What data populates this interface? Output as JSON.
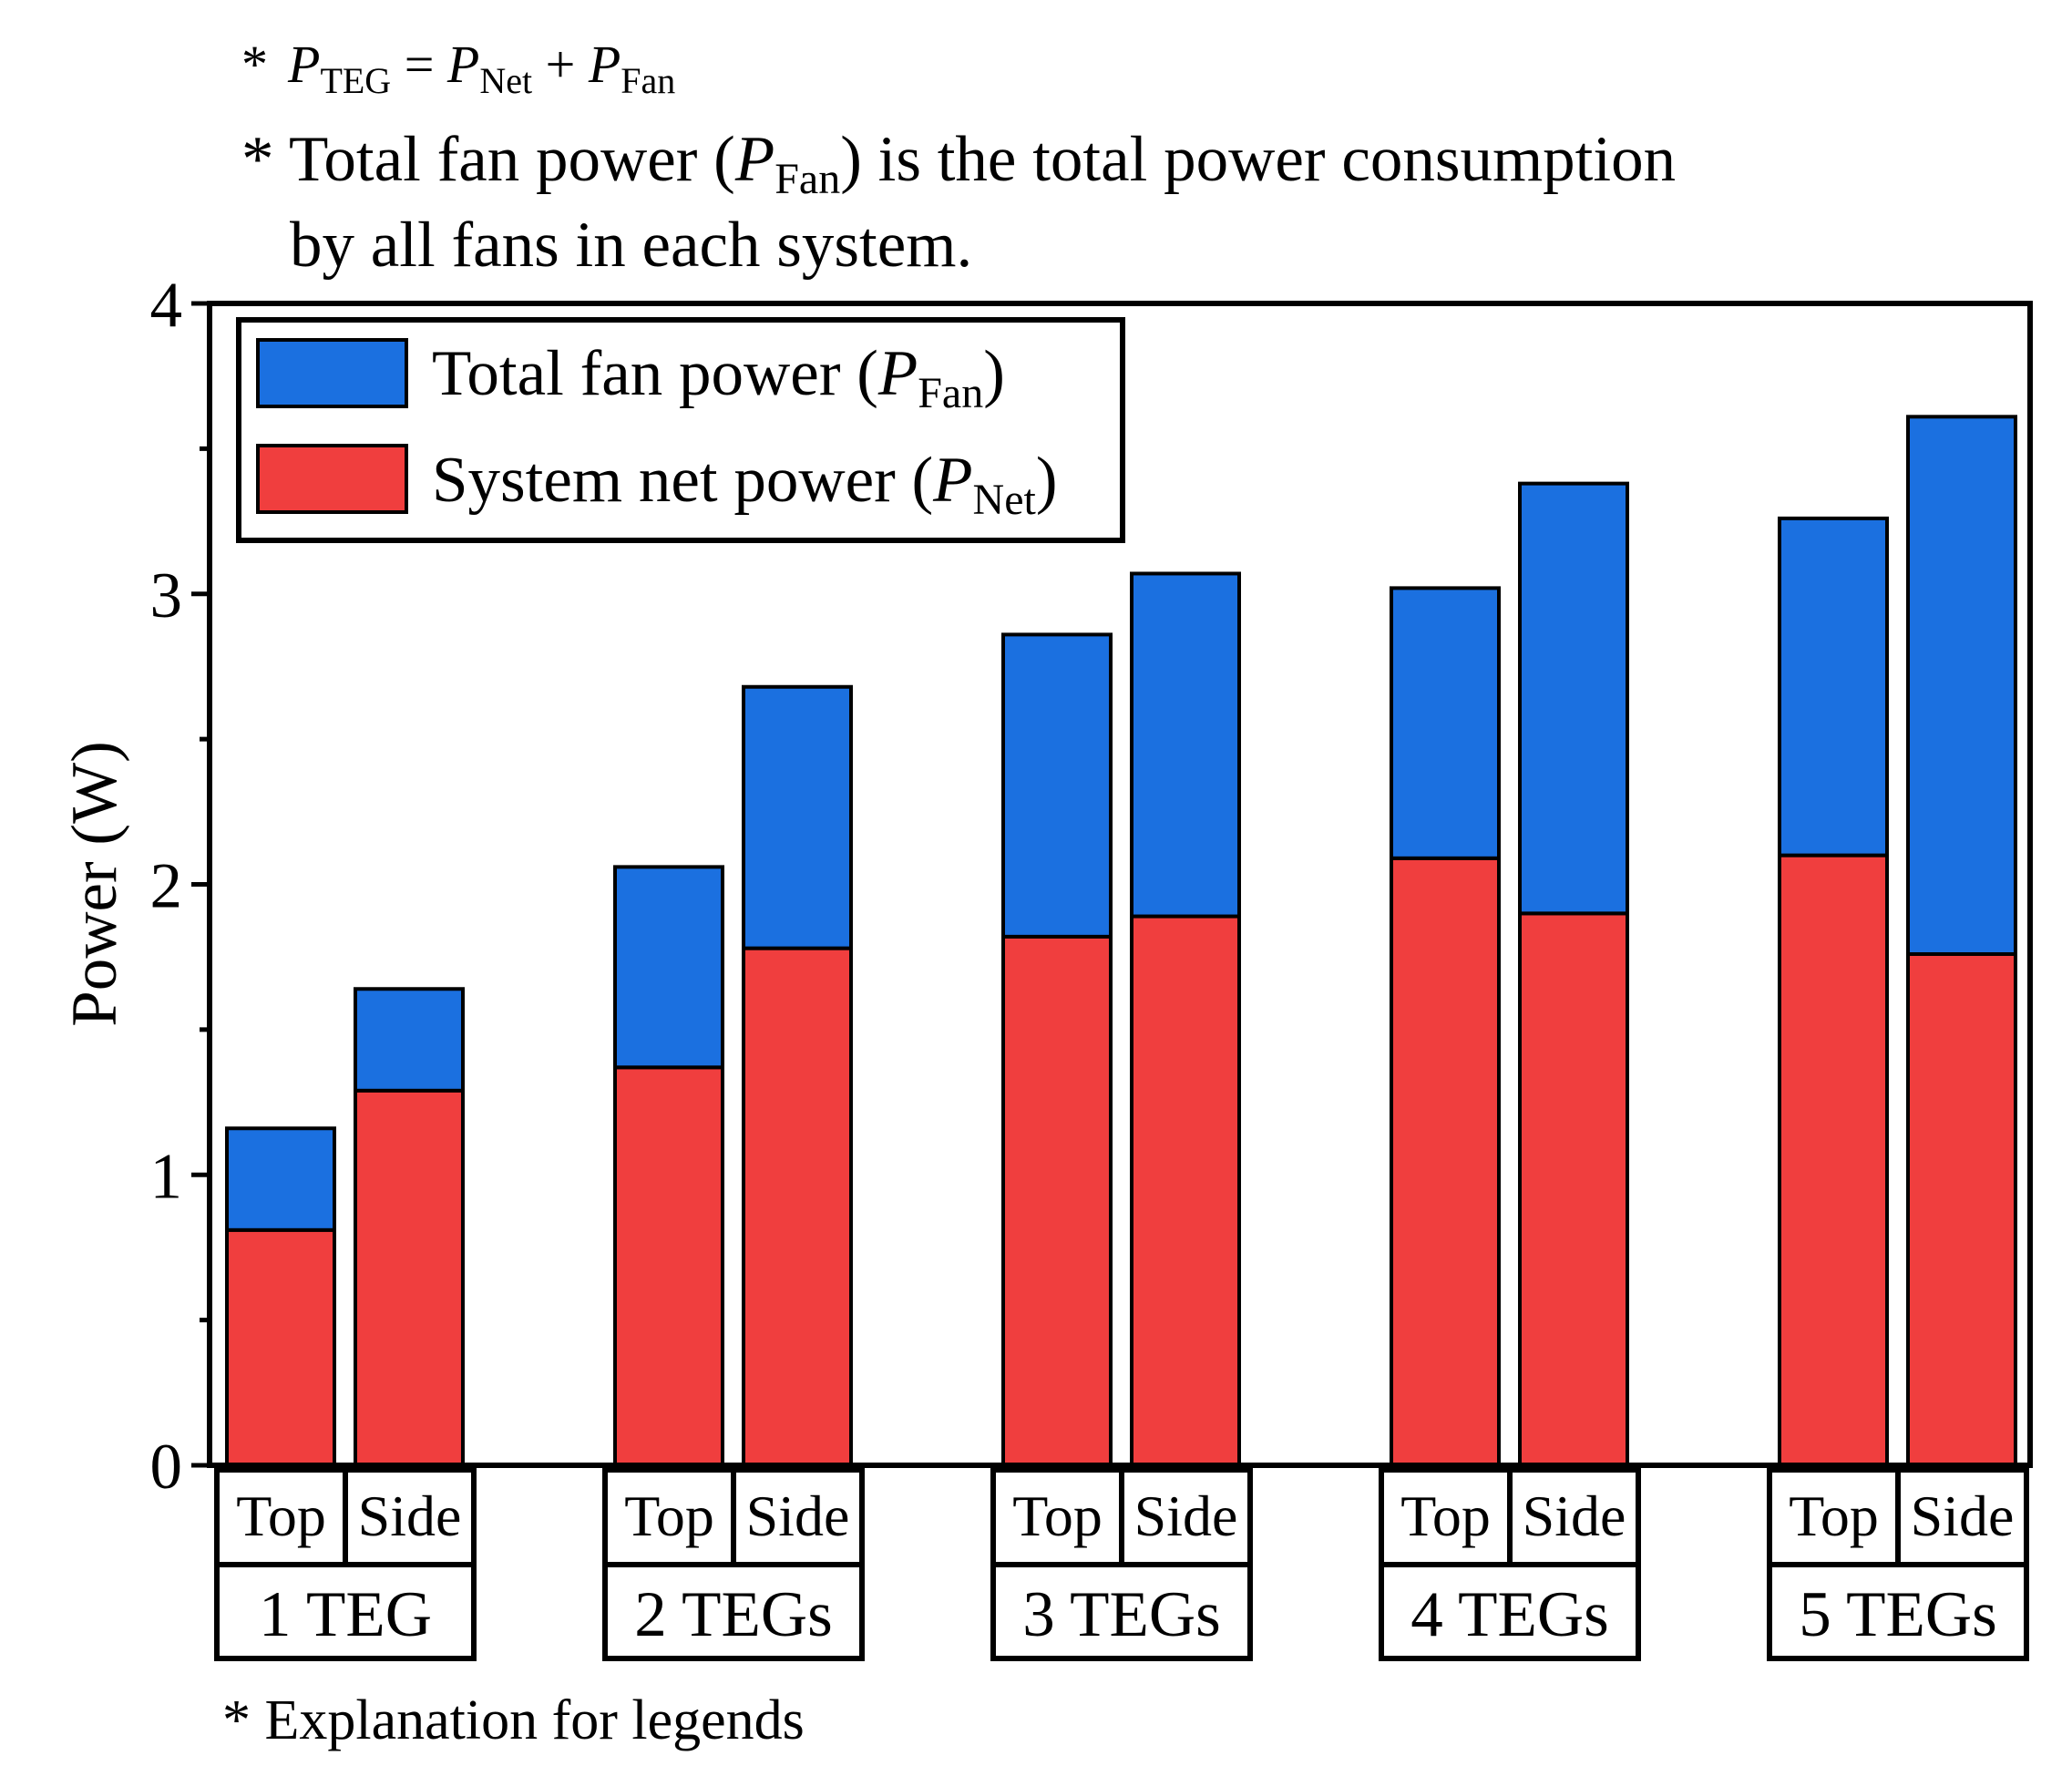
{
  "notes": {
    "line1": {
      "star": "*",
      "p1": "P",
      "s1": "TEG",
      "eq": " = ",
      "p2": "P",
      "s2": "Net",
      "plus": " + ",
      "p3": "P",
      "s3": "Fan"
    },
    "line2": {
      "pre": "* Total fan power (",
      "p": "P",
      "sub": "Fan",
      "post": ") is the total power consumption"
    },
    "line3": "by all fans in each system.",
    "bottom": "* Explanation for legends"
  },
  "colors": {
    "fan": "#1b70e0",
    "net": "#f03e3e",
    "frame": "#000000"
  },
  "chart_data": {
    "type": "bar",
    "stacked": true,
    "ylabel": "Power (W)",
    "ylim": [
      0,
      4
    ],
    "yticks": [
      "0",
      "1",
      "2",
      "3",
      "4"
    ],
    "groups": [
      "1 TEG",
      "2 TEGs",
      "3 TEGs",
      "4 TEGs",
      "5 TEGs"
    ],
    "subcategories": [
      "Top",
      "Side"
    ],
    "categories": [
      "1 TEG Top",
      "1 TEG Side",
      "2 TEGs Top",
      "2 TEGs Side",
      "3 TEGs Top",
      "3 TEGs Side",
      "4 TEGs Top",
      "4 TEGs Side",
      "5 TEGs Top",
      "5 TEGs Side"
    ],
    "series": [
      {
        "name": "System net power (P_Net)",
        "values": [
          0.81,
          1.29,
          1.37,
          1.78,
          1.82,
          1.89,
          2.09,
          1.9,
          2.1,
          1.76
        ]
      },
      {
        "name": "Total fan power (P_Fan)",
        "values": [
          0.35,
          0.35,
          0.69,
          0.9,
          1.04,
          1.18,
          0.93,
          1.48,
          1.16,
          1.85
        ]
      }
    ],
    "totals": [
      1.16,
      1.64,
      2.06,
      2.68,
      2.86,
      3.07,
      3.02,
      3.38,
      3.26,
      3.61
    ],
    "legend": {
      "position": "top-left",
      "fan": {
        "pre": "Total fan power (",
        "p": "P",
        "sub": "Fan",
        "post": ")"
      },
      "net": {
        "pre": "System net power (",
        "p": "P",
        "sub": "Net",
        "post": ")"
      }
    }
  }
}
